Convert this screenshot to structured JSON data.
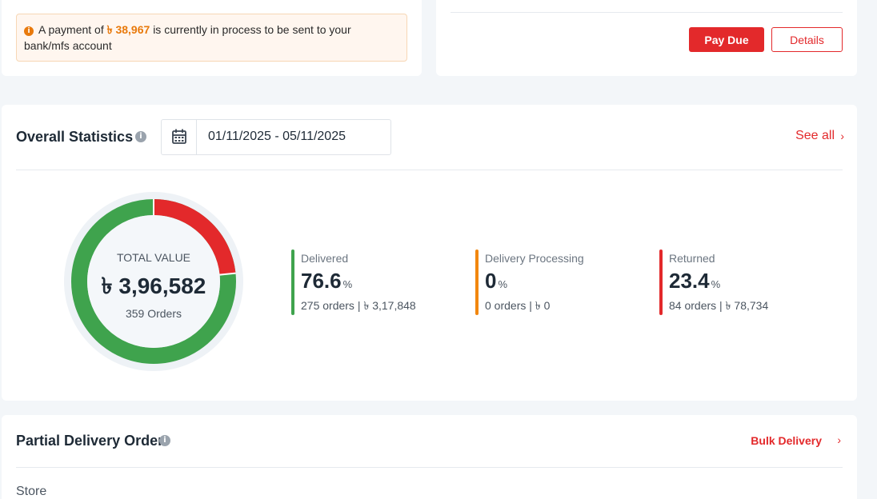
{
  "payment_notice": {
    "text_before": "A payment of",
    "amount": "৳ 38,967",
    "text_after": "is currently in process to be sent to your bank/mfs account"
  },
  "due_actions": {
    "pay_due_label": "Pay Due",
    "details_label": "Details"
  },
  "statistics": {
    "title": "Overall Statistics",
    "date_range": "01/11/2025 - 05/11/2025",
    "see_all_label": "See all",
    "donut": {
      "label": "TOTAL VALUE",
      "value": "৳ 3,96,582",
      "orders": "359 Orders"
    },
    "metrics": [
      {
        "label": "Delivered",
        "percent": "76.6",
        "unit": "%",
        "summary": "275 orders | ৳ 3,17,848",
        "color": "#3fa34d"
      },
      {
        "label": "Delivery Processing",
        "percent": "0",
        "unit": "%",
        "summary": "0 orders | ৳ 0",
        "color": "#f2870f"
      },
      {
        "label": "Returned",
        "percent": "23.4",
        "unit": "%",
        "summary": "84 orders | ৳ 78,734",
        "color": "#e3292b"
      }
    ]
  },
  "partial_delivery": {
    "title": "Partial Delivery Order",
    "bulk_label": "Bulk Delivery",
    "store_label": "Store"
  },
  "colors": {
    "accent": "#e3292b",
    "delivered": "#3fa34d",
    "processing": "#f2870f",
    "returned": "#e3292b"
  }
}
